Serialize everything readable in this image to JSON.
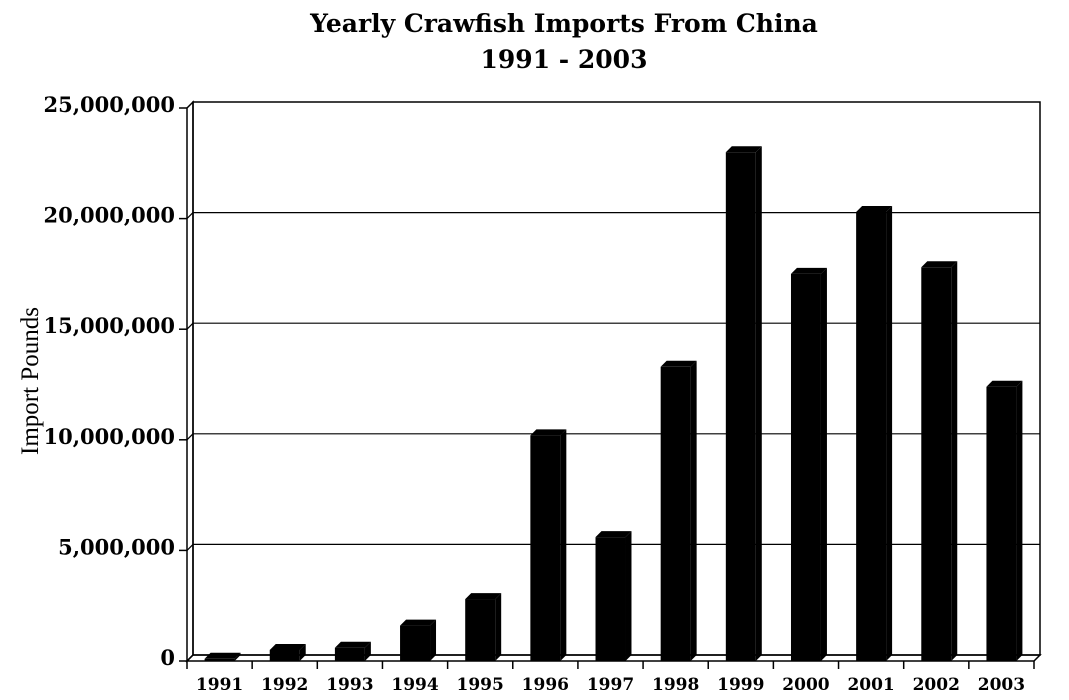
{
  "chart_data": {
    "type": "bar",
    "title": "Yearly Crawfish Imports From China",
    "subtitle": "1991 - 2003",
    "xlabel": "",
    "ylabel": "Import Pounds",
    "categories": [
      "1991",
      "1992",
      "1993",
      "1994",
      "1995",
      "1996",
      "1997",
      "1998",
      "1999",
      "2000",
      "2001",
      "2002",
      "2003"
    ],
    "values": [
      100000,
      500000,
      600000,
      1600000,
      2800000,
      10200000,
      5600000,
      13300000,
      23000000,
      17500000,
      20300000,
      17800000,
      12400000
    ],
    "ylim": [
      0,
      25000000
    ],
    "yticks": [
      0,
      5000000,
      10000000,
      15000000,
      20000000,
      25000000
    ],
    "ytick_labels": [
      "0",
      "5,000,000",
      "10,000,000",
      "15,000,000",
      "20,000,000",
      "25,000,000"
    ],
    "grid": true,
    "bar_color": "#000000"
  }
}
